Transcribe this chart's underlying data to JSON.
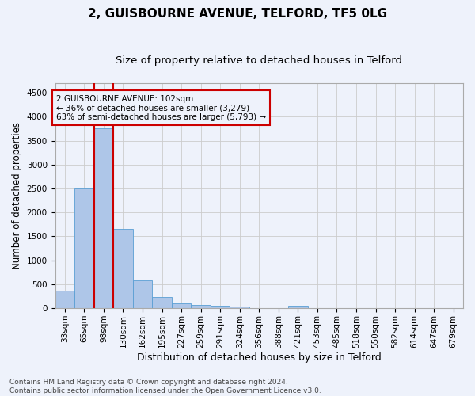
{
  "title": "2, GUISBOURNE AVENUE, TELFORD, TF5 0LG",
  "subtitle": "Size of property relative to detached houses in Telford",
  "xlabel": "Distribution of detached houses by size in Telford",
  "ylabel": "Number of detached properties",
  "categories": [
    "33sqm",
    "65sqm",
    "98sqm",
    "130sqm",
    "162sqm",
    "195sqm",
    "227sqm",
    "259sqm",
    "291sqm",
    "324sqm",
    "356sqm",
    "388sqm",
    "421sqm",
    "453sqm",
    "485sqm",
    "518sqm",
    "550sqm",
    "582sqm",
    "614sqm",
    "647sqm",
    "679sqm"
  ],
  "values": [
    375,
    2500,
    3750,
    1650,
    590,
    230,
    105,
    75,
    50,
    35,
    0,
    0,
    55,
    0,
    0,
    0,
    0,
    0,
    0,
    0,
    0
  ],
  "bar_color": "#aec6e8",
  "bar_edge_color": "#5a9fd4",
  "highlight_bar_index": 2,
  "highlight_line_color": "#cc0000",
  "ylim": [
    0,
    4700
  ],
  "yticks": [
    0,
    500,
    1000,
    1500,
    2000,
    2500,
    3000,
    3500,
    4000,
    4500
  ],
  "annotation_box_text": "2 GUISBOURNE AVENUE: 102sqm\n← 36% of detached houses are smaller (3,279)\n63% of semi-detached houses are larger (5,793) →",
  "annotation_box_color": "#cc0000",
  "background_color": "#eef2fb",
  "grid_color": "#cccccc",
  "footer_text": "Contains HM Land Registry data © Crown copyright and database right 2024.\nContains public sector information licensed under the Open Government Licence v3.0.",
  "title_fontsize": 11,
  "subtitle_fontsize": 9.5,
  "xlabel_fontsize": 9,
  "ylabel_fontsize": 8.5,
  "tick_fontsize": 7.5,
  "annotation_fontsize": 7.5,
  "footer_fontsize": 6.5
}
